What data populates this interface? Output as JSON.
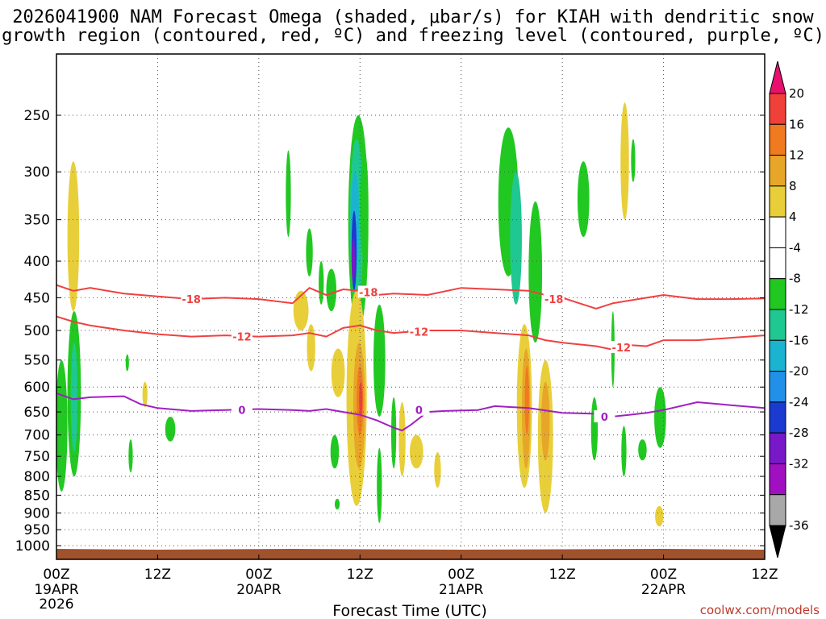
{
  "chart_data": {
    "type": "heatmap",
    "title_line1": "2026041900 NAM Forecast Omega (shaded, μbar/s) for KIAH with dendritic snow",
    "title_line2": "growth region (contoured, red, ºC) and freezing level (contoured, purple, ºC)",
    "xlabel": "Forecast Time (UTC)",
    "ylabel": "",
    "credit": "coolwx.com/models",
    "x_range_hours": [
      0,
      84
    ],
    "x_ticks": [
      {
        "hour": 0,
        "label": "00Z",
        "date": "19APR",
        "year": "2026"
      },
      {
        "hour": 12,
        "label": "12Z",
        "date": "",
        "year": ""
      },
      {
        "hour": 24,
        "label": "00Z",
        "date": "20APR",
        "year": ""
      },
      {
        "hour": 36,
        "label": "12Z",
        "date": "",
        "year": ""
      },
      {
        "hour": 48,
        "label": "00Z",
        "date": "21APR",
        "year": ""
      },
      {
        "hour": 60,
        "label": "12Z",
        "date": "",
        "year": ""
      },
      {
        "hour": 72,
        "label": "00Z",
        "date": "22APR",
        "year": ""
      },
      {
        "hour": 84,
        "label": "12Z",
        "date": "",
        "year": ""
      }
    ],
    "y_ticks_mb": [
      250,
      300,
      350,
      400,
      450,
      500,
      550,
      600,
      650,
      700,
      750,
      800,
      850,
      900,
      950,
      1000
    ],
    "colorbar": {
      "labels": [
        "20",
        "16",
        "12",
        "8",
        "4",
        "-4",
        "-8",
        "-12",
        "-16",
        "-20",
        "-24",
        "-28",
        "-32",
        "-36"
      ],
      "colors": [
        "#e8106e",
        "#f0403a",
        "#f07a20",
        "#e8a628",
        "#e8cf3a",
        "#ffffff",
        "#ffffff",
        "#22c822",
        "#1fc890",
        "#1ab4d0",
        "#2090e8",
        "#1a3ad0",
        "#7818c8",
        "#a010c0",
        "#a8a8a8",
        "#000000"
      ]
    },
    "contours": [
      {
        "name": "-18C isotherm",
        "color": "#f04040",
        "label": "-18",
        "points": [
          [
            0,
            432
          ],
          [
            2,
            440
          ],
          [
            4,
            436
          ],
          [
            8,
            444
          ],
          [
            12,
            448
          ],
          [
            16,
            452
          ],
          [
            20,
            450
          ],
          [
            24,
            452
          ],
          [
            28,
            458
          ],
          [
            30,
            436
          ],
          [
            32,
            446
          ],
          [
            34,
            438
          ],
          [
            36,
            440
          ],
          [
            38,
            446
          ],
          [
            40,
            444
          ],
          [
            44,
            446
          ],
          [
            48,
            436
          ],
          [
            52,
            438
          ],
          [
            56,
            440
          ],
          [
            58,
            446
          ],
          [
            60,
            450
          ],
          [
            62,
            458
          ],
          [
            64,
            466
          ],
          [
            66,
            458
          ],
          [
            70,
            450
          ],
          [
            72,
            446
          ],
          [
            76,
            452
          ],
          [
            80,
            452
          ],
          [
            84,
            451
          ]
        ],
        "label_positions": [
          [
            16,
            452
          ],
          [
            37,
            442
          ],
          [
            59,
            452
          ]
        ]
      },
      {
        "name": "-12C isotherm",
        "color": "#f04040",
        "label": "-12",
        "points": [
          [
            0,
            478
          ],
          [
            2,
            486
          ],
          [
            4,
            492
          ],
          [
            8,
            500
          ],
          [
            12,
            506
          ],
          [
            16,
            510
          ],
          [
            20,
            508
          ],
          [
            24,
            510
          ],
          [
            28,
            508
          ],
          [
            30,
            504
          ],
          [
            32,
            510
          ],
          [
            34,
            496
          ],
          [
            36,
            492
          ],
          [
            38,
            500
          ],
          [
            40,
            504
          ],
          [
            44,
            500
          ],
          [
            48,
            500
          ],
          [
            52,
            504
          ],
          [
            56,
            508
          ],
          [
            58,
            516
          ],
          [
            60,
            520
          ],
          [
            64,
            526
          ],
          [
            66,
            532
          ],
          [
            68,
            524
          ],
          [
            70,
            526
          ],
          [
            72,
            516
          ],
          [
            76,
            516
          ],
          [
            80,
            512
          ],
          [
            84,
            508
          ]
        ],
        "label_positions": [
          [
            22,
            510
          ],
          [
            43,
            502
          ],
          [
            67,
            528
          ]
        ]
      },
      {
        "name": "0C freezing level",
        "color": "#a020c0",
        "label": "0",
        "points": [
          [
            0,
            612
          ],
          [
            2,
            624
          ],
          [
            4,
            620
          ],
          [
            8,
            618
          ],
          [
            10,
            634
          ],
          [
            12,
            642
          ],
          [
            16,
            648
          ],
          [
            20,
            646
          ],
          [
            24,
            644
          ],
          [
            28,
            646
          ],
          [
            30,
            648
          ],
          [
            32,
            644
          ],
          [
            34,
            650
          ],
          [
            36,
            656
          ],
          [
            38,
            668
          ],
          [
            40,
            684
          ],
          [
            41,
            690
          ],
          [
            42,
            678
          ],
          [
            44,
            650
          ],
          [
            46,
            648
          ],
          [
            50,
            646
          ],
          [
            52,
            638
          ],
          [
            56,
            642
          ],
          [
            60,
            652
          ],
          [
            64,
            654
          ],
          [
            66,
            660
          ],
          [
            68,
            656
          ],
          [
            70,
            652
          ],
          [
            72,
            646
          ],
          [
            76,
            630
          ],
          [
            80,
            636
          ],
          [
            84,
            642
          ]
        ],
        "label_positions": [
          [
            22,
            646
          ],
          [
            43,
            646
          ],
          [
            65,
            660
          ]
        ]
      }
    ],
    "shaded_cells": [
      {
        "t": 0.6,
        "p1": 550,
        "p2": 840,
        "w": 1.4,
        "v": -8
      },
      {
        "t": 2.0,
        "p1": 290,
        "p2": 470,
        "w": 1.4,
        "v": 5
      },
      {
        "t": 2.1,
        "p1": 470,
        "p2": 800,
        "w": 1.6,
        "v": -8
      },
      {
        "t": 2.1,
        "p1": 520,
        "p2": 740,
        "w": 0.8,
        "v": -12
      },
      {
        "t": 8.4,
        "p1": 540,
        "p2": 570,
        "w": 0.4,
        "v": -8
      },
      {
        "t": 10.5,
        "p1": 590,
        "p2": 640,
        "w": 0.6,
        "v": 5
      },
      {
        "t": 13.5,
        "p1": 660,
        "p2": 715,
        "w": 1.2,
        "v": -8
      },
      {
        "t": 8.8,
        "p1": 710,
        "p2": 790,
        "w": 0.5,
        "v": -8
      },
      {
        "t": 27.5,
        "p1": 280,
        "p2": 370,
        "w": 0.6,
        "v": -8
      },
      {
        "t": 29.0,
        "p1": 440,
        "p2": 500,
        "w": 1.8,
        "v": 5
      },
      {
        "t": 30.2,
        "p1": 490,
        "p2": 570,
        "w": 1.0,
        "v": 5
      },
      {
        "t": 30.0,
        "p1": 360,
        "p2": 420,
        "w": 0.8,
        "v": -8
      },
      {
        "t": 31.4,
        "p1": 400,
        "p2": 460,
        "w": 0.6,
        "v": -8
      },
      {
        "t": 32.6,
        "p1": 410,
        "p2": 470,
        "w": 1.2,
        "v": -8
      },
      {
        "t": 33.4,
        "p1": 530,
        "p2": 620,
        "w": 1.6,
        "v": 5
      },
      {
        "t": 33.0,
        "p1": 700,
        "p2": 780,
        "w": 1.0,
        "v": -8
      },
      {
        "t": 33.3,
        "p1": 860,
        "p2": 890,
        "w": 0.6,
        "v": -8
      },
      {
        "t": 35.8,
        "p1": 250,
        "p2": 500,
        "w": 2.4,
        "v": -8
      },
      {
        "t": 35.6,
        "p1": 270,
        "p2": 460,
        "w": 1.6,
        "v": -12
      },
      {
        "t": 35.4,
        "p1": 300,
        "p2": 420,
        "w": 1.0,
        "v": -16
      },
      {
        "t": 35.3,
        "p1": 340,
        "p2": 440,
        "w": 0.6,
        "v": -24
      },
      {
        "t": 35.2,
        "p1": 370,
        "p2": 430,
        "w": 0.4,
        "v": -28
      },
      {
        "t": 36.5,
        "p1": 280,
        "p2": 400,
        "w": 1.0,
        "v": -8
      },
      {
        "t": 35.6,
        "p1": 440,
        "p2": 880,
        "w": 2.4,
        "v": 5
      },
      {
        "t": 35.9,
        "p1": 520,
        "p2": 780,
        "w": 1.4,
        "v": 8
      },
      {
        "t": 36.0,
        "p1": 560,
        "p2": 700,
        "w": 0.8,
        "v": 12
      },
      {
        "t": 36.1,
        "p1": 590,
        "p2": 660,
        "w": 0.4,
        "v": 16
      },
      {
        "t": 38.3,
        "p1": 460,
        "p2": 660,
        "w": 1.4,
        "v": -8
      },
      {
        "t": 38.3,
        "p1": 730,
        "p2": 930,
        "w": 0.6,
        "v": -8
      },
      {
        "t": 40.0,
        "p1": 620,
        "p2": 780,
        "w": 0.6,
        "v": -8
      },
      {
        "t": 41.0,
        "p1": 630,
        "p2": 800,
        "w": 0.8,
        "v": 5
      },
      {
        "t": 42.7,
        "p1": 700,
        "p2": 780,
        "w": 1.6,
        "v": 5
      },
      {
        "t": 45.2,
        "p1": 740,
        "p2": 830,
        "w": 0.8,
        "v": 5
      },
      {
        "t": 53.6,
        "p1": 260,
        "p2": 420,
        "w": 2.4,
        "v": -8
      },
      {
        "t": 54.5,
        "p1": 300,
        "p2": 460,
        "w": 1.4,
        "v": -12
      },
      {
        "t": 56.8,
        "p1": 330,
        "p2": 520,
        "w": 1.6,
        "v": -8
      },
      {
        "t": 55.5,
        "p1": 490,
        "p2": 830,
        "w": 1.8,
        "v": 5
      },
      {
        "t": 55.7,
        "p1": 530,
        "p2": 780,
        "w": 1.0,
        "v": 8
      },
      {
        "t": 55.8,
        "p1": 560,
        "p2": 700,
        "w": 0.5,
        "v": 12
      },
      {
        "t": 58.0,
        "p1": 550,
        "p2": 900,
        "w": 1.8,
        "v": 5
      },
      {
        "t": 58.0,
        "p1": 590,
        "p2": 760,
        "w": 1.0,
        "v": 8
      },
      {
        "t": 62.5,
        "p1": 290,
        "p2": 370,
        "w": 1.4,
        "v": -8
      },
      {
        "t": 63.8,
        "p1": 620,
        "p2": 760,
        "w": 0.8,
        "v": -8
      },
      {
        "t": 67.4,
        "p1": 240,
        "p2": 350,
        "w": 1.0,
        "v": 5
      },
      {
        "t": 68.4,
        "p1": 270,
        "p2": 310,
        "w": 0.5,
        "v": -8
      },
      {
        "t": 66.0,
        "p1": 470,
        "p2": 600,
        "w": 0.4,
        "v": -8
      },
      {
        "t": 67.3,
        "p1": 680,
        "p2": 800,
        "w": 0.6,
        "v": -8
      },
      {
        "t": 69.5,
        "p1": 710,
        "p2": 760,
        "w": 1.0,
        "v": -8
      },
      {
        "t": 71.6,
        "p1": 600,
        "p2": 730,
        "w": 1.4,
        "v": -8
      },
      {
        "t": 71.5,
        "p1": 880,
        "p2": 940,
        "w": 1.0,
        "v": 5
      }
    ]
  }
}
